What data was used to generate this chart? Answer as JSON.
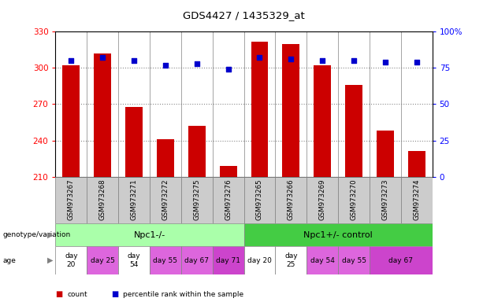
{
  "title": "GDS4427 / 1435329_at",
  "samples": [
    "GSM973267",
    "GSM973268",
    "GSM973271",
    "GSM973272",
    "GSM973275",
    "GSM973276",
    "GSM973265",
    "GSM973266",
    "GSM973269",
    "GSM973270",
    "GSM973273",
    "GSM973274"
  ],
  "counts": [
    302,
    312,
    268,
    241,
    252,
    219,
    322,
    320,
    302,
    286,
    248,
    231
  ],
  "percentile_ranks": [
    80,
    82,
    80,
    77,
    78,
    74,
    82,
    81,
    80,
    80,
    79,
    79
  ],
  "ylim_left": [
    210,
    330
  ],
  "ylim_right": [
    0,
    100
  ],
  "yticks_left": [
    210,
    240,
    270,
    300,
    330
  ],
  "yticks_right": [
    0,
    25,
    50,
    75,
    100
  ],
  "bar_color": "#cc0000",
  "dot_color": "#0000cc",
  "sample_bg_color": "#cccccc",
  "group1_light_color": "#aaffaa",
  "group2_dark_color": "#44cc44",
  "age_white": "#ffffff",
  "age_pink": "#dd66dd",
  "age_bright_pink": "#cc44cc",
  "npc1_minus": "Npc1-/-",
  "npc1_plus": "Npc1+/- control",
  "dotted_line_color": "#888888",
  "bar_width": 0.55,
  "age_info": [
    [
      0,
      1,
      "day\n20",
      "#ffffff"
    ],
    [
      1,
      2,
      "day 25",
      "#dd66dd"
    ],
    [
      2,
      3,
      "day\n54",
      "#ffffff"
    ],
    [
      3,
      4,
      "day 55",
      "#dd66dd"
    ],
    [
      4,
      5,
      "day 67",
      "#dd66dd"
    ],
    [
      5,
      6,
      "day 71",
      "#cc44cc"
    ],
    [
      6,
      7,
      "day 20",
      "#ffffff"
    ],
    [
      7,
      8,
      "day\n25",
      "#ffffff"
    ],
    [
      8,
      9,
      "day 54",
      "#dd66dd"
    ],
    [
      9,
      10,
      "day 55",
      "#dd66dd"
    ],
    [
      10,
      12,
      "day 67",
      "#cc44cc"
    ]
  ]
}
